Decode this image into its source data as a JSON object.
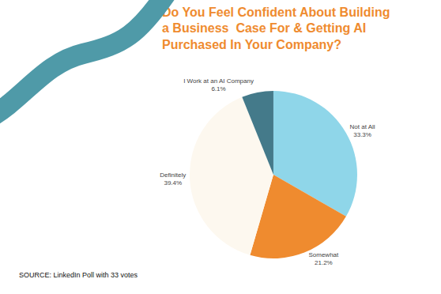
{
  "chart_data": {
    "type": "pie",
    "title": "Do You Feel Confident About Building a Business  Case For & Getting AI Purchased In Your Company?",
    "categories": [
      "Not at All",
      "Somewhat",
      "Definitely",
      "I Work at an AI Company"
    ],
    "values": [
      33.3,
      21.2,
      39.4,
      6.1
    ],
    "value_labels": [
      "33.3%",
      "21.2%",
      "39.4%",
      "6.1%"
    ],
    "colors": [
      "#8fd6e9",
      "#ef8b2f",
      "#fdf8ef",
      "#447a8a"
    ],
    "data_labels": true,
    "annotations": [
      "SOURCE: LinkedIn Poll with 33 votes"
    ]
  }
}
